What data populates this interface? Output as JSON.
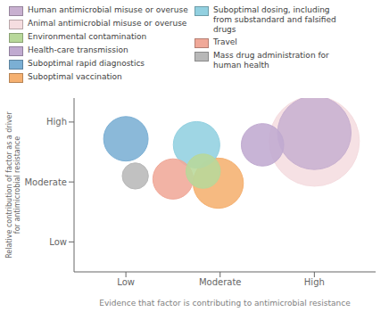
{
  "chart_data": {
    "type": "bubble",
    "xlabel": "Evidence that factor is contributing to antimicrobial resistance",
    "ylabel": "Relative contribution of factor as a driver\nfor antimicrobial resistance",
    "xlim": [
      0.45,
      3.65
    ],
    "ylim": [
      0.5,
      3.4
    ],
    "xticks": [
      {
        "value": 1,
        "label": "Low"
      },
      {
        "value": 2,
        "label": "Moderate"
      },
      {
        "value": 3,
        "label": "High"
      }
    ],
    "yticks": [
      {
        "value": 1,
        "label": "Low"
      },
      {
        "value": 2,
        "label": "Moderate"
      },
      {
        "value": 3,
        "label": "High"
      }
    ],
    "legend": "top",
    "series": [
      {
        "name": "Human antimicrobial misuse or overuse",
        "color": "#c8b0d0",
        "x": [
          3.0
        ],
        "y": [
          2.82
        ],
        "size": [
          3000
        ]
      },
      {
        "name": "Animal antimicrobial misuse or overuse",
        "color": "#f5dde0",
        "x": [
          3.0
        ],
        "y": [
          2.68
        ],
        "size": [
          4500
        ]
      },
      {
        "name": "Environmental contamination",
        "color": "#b8d89a",
        "x": [
          1.82
        ],
        "y": [
          2.18
        ],
        "size": [
          650
        ]
      },
      {
        "name": "Health-care transmission",
        "color": "#c0aad0",
        "x": [
          2.45
        ],
        "y": [
          2.62
        ],
        "size": [
          1000
        ]
      },
      {
        "name": "Suboptimal rapid diagnostics",
        "color": "#7bafd4",
        "x": [
          1.0
        ],
        "y": [
          2.72
        ],
        "size": [
          1100
        ]
      },
      {
        "name": "Suboptimal vaccination",
        "color": "#f5b070",
        "x": [
          1.98
        ],
        "y": [
          1.98
        ],
        "size": [
          1400
        ]
      },
      {
        "name": "Suboptimal dosing, including\nfrom substandard and falsified\ndrugs",
        "color": "#92d0e0",
        "x": [
          1.75
        ],
        "y": [
          2.62
        ],
        "size": [
          1200
        ]
      },
      {
        "name": "Travel",
        "color": "#f0a898",
        "x": [
          1.5
        ],
        "y": [
          2.05
        ],
        "size": [
          900
        ]
      },
      {
        "name": "Mass drug administration for\nhuman health",
        "color": "#b8b8b8",
        "x": [
          1.1
        ],
        "y": [
          2.1
        ],
        "size": [
          380
        ]
      }
    ]
  }
}
